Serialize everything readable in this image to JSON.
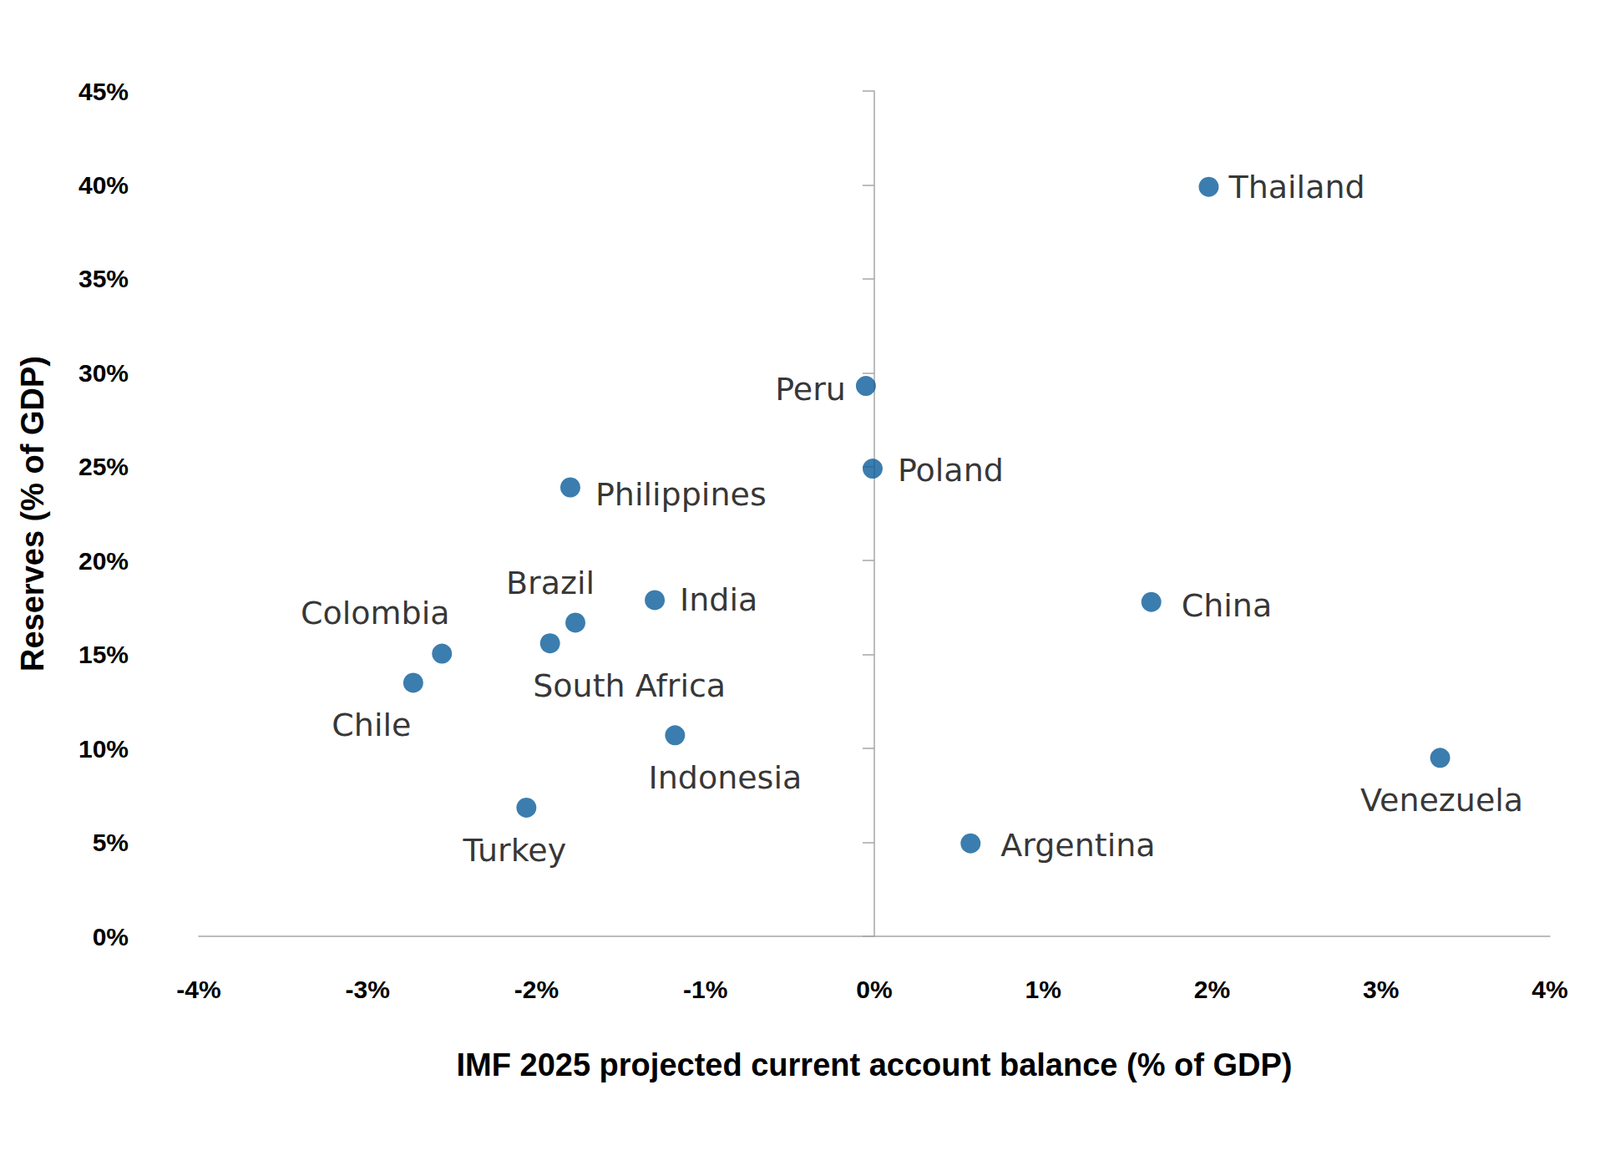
{
  "chart_data": {
    "type": "scatter",
    "x_label": "IMF 2025 projected current account balance (% of GDP)",
    "y_label": "Reserves (% of GDP)",
    "labels": [
      "Thailand",
      "Peru",
      "Poland",
      "Philippines",
      "India",
      "China",
      "Brazil",
      "South Africa",
      "Colombia",
      "Chile",
      "Indonesia",
      "Venezuela",
      "Turkey",
      "Argentina"
    ],
    "x": [
      1.98,
      -0.05,
      -0.01,
      -1.8,
      -1.3,
      1.64,
      -1.77,
      -1.92,
      -2.56,
      -2.73,
      -1.18,
      3.35,
      -2.06,
      0.57
    ],
    "values": [
      39.9,
      29.3,
      24.9,
      23.9,
      17.9,
      17.8,
      16.7,
      15.6,
      15.05,
      13.5,
      10.7,
      9.5,
      6.85,
      4.95
    ],
    "color": "#0a5c9a",
    "marker": "circle",
    "xlim": [
      -4,
      4
    ],
    "xticks": [
      {
        "value": -4,
        "label": "-4%"
      },
      {
        "value": -3,
        "label": "-3%"
      },
      {
        "value": -2,
        "label": "-2%"
      },
      {
        "value": -1,
        "label": "-1%"
      },
      {
        "value": 0,
        "label": "0%"
      },
      {
        "value": 1,
        "label": "1%"
      },
      {
        "value": 2,
        "label": "2%"
      },
      {
        "value": 3,
        "label": "3%"
      },
      {
        "value": 4,
        "label": "4%"
      }
    ],
    "ylim": [
      0,
      45
    ],
    "yticks": [
      {
        "value": 0,
        "label": "0%"
      },
      {
        "value": 5,
        "label": "5%"
      },
      {
        "value": 10,
        "label": "10%"
      },
      {
        "value": 15,
        "label": "15%"
      },
      {
        "value": 20,
        "label": "20%"
      },
      {
        "value": 25,
        "label": "25%"
      },
      {
        "value": 30,
        "label": "30%"
      },
      {
        "value": 35,
        "label": "35%"
      },
      {
        "value": 40,
        "label": "40%"
      },
      {
        "value": 45,
        "label": "45%"
      }
    ],
    "grid": false
  }
}
